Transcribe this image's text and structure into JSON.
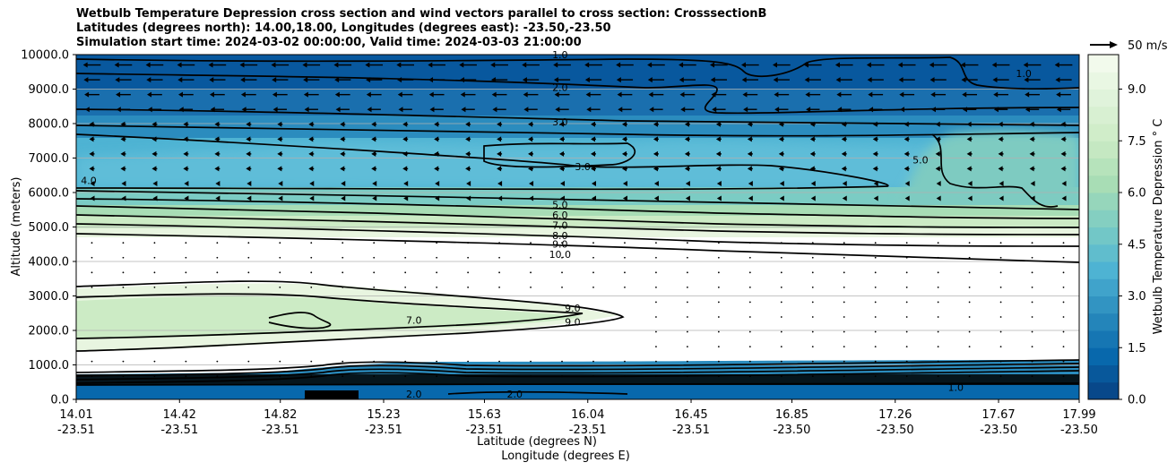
{
  "chart_data": {
    "type": "heatmap",
    "title_lines": [
      "Wetbulb Temperature Depression cross section and wind vectors parallel to cross section: CrosssectionB",
      "Latitudes (degrees north): 14.00,18.00, Longitudes (degrees east): -23.50,-23.50",
      "Simulation start time: 2024-03-02 00:00:00, Valid time: 2024-03-03 21:00:00"
    ],
    "ylabel": "Altitude (meters)",
    "xlabel": "Latitude (degrees N)",
    "xlabel2": "Longitude (degrees E)",
    "ylim": [
      0,
      10000
    ],
    "y_ticks": [
      "0.0",
      "1000.0",
      "2000.0",
      "3000.0",
      "4000.0",
      "5000.0",
      "6000.0",
      "7000.0",
      "8000.0",
      "9000.0",
      "10000.0"
    ],
    "x_ticks": [
      {
        "lat": "14.01",
        "lon": "-23.51"
      },
      {
        "lat": "14.42",
        "lon": "-23.51"
      },
      {
        "lat": "14.82",
        "lon": "-23.51"
      },
      {
        "lat": "15.23",
        "lon": "-23.51"
      },
      {
        "lat": "15.63",
        "lon": "-23.51"
      },
      {
        "lat": "16.04",
        "lon": "-23.51"
      },
      {
        "lat": "16.45",
        "lon": "-23.51"
      },
      {
        "lat": "16.85",
        "lon": "-23.50"
      },
      {
        "lat": "17.26",
        "lon": "-23.50"
      },
      {
        "lat": "17.67",
        "lon": "-23.50"
      },
      {
        "lat": "17.99",
        "lon": "-23.50"
      }
    ],
    "grid": "horizontal",
    "colorbar": {
      "label": "Wetbulb Temperature Depression ° C",
      "range": [
        0,
        10
      ],
      "ticks": [
        "0.0",
        "1.5",
        "3.0",
        "4.5",
        "6.0",
        "7.5",
        "9.0"
      ],
      "colormap": "GnBu_r"
    },
    "wind_key": "50 m/s",
    "contour_labels": [
      {
        "text": "1.0",
        "lat": 15.93,
        "alt": 9950
      },
      {
        "text": "2.0",
        "lat": 15.93,
        "alt": 9000
      },
      {
        "text": "3.0",
        "lat": 15.93,
        "alt": 8000
      },
      {
        "text": "3.0",
        "lat": 16.02,
        "alt": 6700
      },
      {
        "text": "5.0",
        "lat": 15.93,
        "alt": 5600
      },
      {
        "text": "6.0",
        "lat": 15.93,
        "alt": 5300
      },
      {
        "text": "7.0",
        "lat": 15.93,
        "alt": 5000
      },
      {
        "text": "8.0",
        "lat": 15.93,
        "alt": 4700
      },
      {
        "text": "9.0",
        "lat": 15.93,
        "alt": 4450
      },
      {
        "text": "10.0",
        "lat": 15.93,
        "alt": 4150
      },
      {
        "text": "4.0",
        "lat": 14.06,
        "alt": 6300
      },
      {
        "text": "5.0",
        "lat": 17.36,
        "alt": 6900
      },
      {
        "text": "1.0",
        "lat": 17.77,
        "alt": 9400
      },
      {
        "text": "9.0",
        "lat": 15.98,
        "alt": 2600
      },
      {
        "text": "9.0",
        "lat": 15.98,
        "alt": 2200
      },
      {
        "text": "7.0",
        "lat": 15.35,
        "alt": 2250
      },
      {
        "text": "2.0",
        "lat": 15.35,
        "alt": 100
      },
      {
        "text": "2.0",
        "lat": 15.75,
        "alt": 100
      },
      {
        "text": "1.0",
        "lat": 17.5,
        "alt": 300
      }
    ],
    "fields": {
      "description_bands": [
        {
          "alt_from": 0,
          "alt_to": 400,
          "value": 0.5
        },
        {
          "alt_from": 400,
          "alt_to": 1000,
          "value": 4.0
        },
        {
          "alt_from": 1000,
          "alt_to": 2200,
          "value": 10.0
        },
        {
          "alt_from": 2200,
          "alt_to": 2700,
          "value": 7.5
        },
        {
          "alt_from": 2700,
          "alt_to": 4700,
          "value": 10.0
        },
        {
          "alt_from": 4700,
          "alt_to": 6000,
          "value": 7.0
        },
        {
          "alt_from": 6000,
          "alt_to": 8000,
          "value": 3.5
        },
        {
          "alt_from": 8000,
          "alt_to": 9000,
          "value": 2.5
        },
        {
          "alt_from": 9000,
          "alt_to": 10000,
          "value": 1.5
        }
      ]
    }
  }
}
